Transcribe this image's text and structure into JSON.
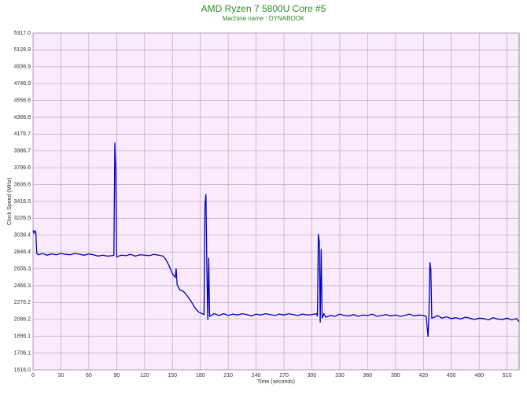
{
  "chart_data": {
    "type": "line",
    "title": "AMD Ryzen 7 5800U Core #5",
    "subtitle": "Machine name : DYNABOOK",
    "x_label": "Time (seconds)",
    "y_label": "Clock Speed (MHz)",
    "xlim": [
      0,
      523
    ],
    "xticks": [
      0,
      30,
      60,
      90,
      120,
      150,
      180,
      210,
      240,
      270,
      300,
      330,
      360,
      390,
      420,
      450,
      480,
      510
    ],
    "ylim": [
      1516,
      5317
    ],
    "yticks": [
      {
        "value": 1516,
        "label": "1516.0"
      },
      1706.1,
      1896.1,
      2086.2,
      2276.2,
      2466.3,
      2656.3,
      2846.4,
      3036.4,
      3226.5,
      3416.5,
      3606.6,
      3796.6,
      3986.7,
      4176.7,
      4366.8,
      4556.8,
      4746.9,
      4936.9,
      5126.9,
      {
        "value": 5317,
        "label": "5317.0"
      }
    ],
    "grid": true,
    "x": [
      0,
      1,
      2,
      3,
      4,
      6,
      10,
      15,
      20,
      25,
      30,
      35,
      40,
      45,
      50,
      55,
      60,
      65,
      70,
      75,
      80,
      85,
      87,
      88,
      89,
      90,
      92,
      95,
      100,
      105,
      110,
      115,
      120,
      125,
      130,
      135,
      140,
      143,
      146,
      150,
      153,
      154,
      155,
      158,
      162,
      166,
      170,
      174,
      178,
      182,
      184,
      185,
      186,
      187,
      188,
      189,
      190,
      195,
      200,
      205,
      210,
      215,
      220,
      225,
      230,
      235,
      240,
      245,
      250,
      255,
      260,
      265,
      270,
      275,
      280,
      285,
      290,
      295,
      300,
      305,
      306,
      307,
      308,
      309,
      310,
      311,
      313,
      315,
      320,
      325,
      330,
      335,
      340,
      345,
      350,
      355,
      360,
      365,
      370,
      375,
      380,
      385,
      390,
      395,
      400,
      405,
      410,
      415,
      420,
      423,
      425,
      426,
      427,
      428,
      429,
      432,
      435,
      440,
      445,
      450,
      455,
      460,
      465,
      470,
      475,
      480,
      485,
      490,
      495,
      500,
      505,
      510,
      515,
      520,
      523
    ],
    "series": [
      {
        "name": "Core #5",
        "color": "#0000c0",
        "values": [
          3090,
          3060,
          3085,
          3070,
          2830,
          2815,
          2830,
          2810,
          2825,
          2815,
          2830,
          2820,
          2815,
          2830,
          2820,
          2810,
          2825,
          2815,
          2800,
          2810,
          2800,
          2805,
          2810,
          4080,
          3780,
          2790,
          2800,
          2810,
          2805,
          2820,
          2800,
          2815,
          2810,
          2805,
          2820,
          2810,
          2800,
          2760,
          2700,
          2600,
          2560,
          2660,
          2480,
          2420,
          2400,
          2350,
          2290,
          2220,
          2170,
          2150,
          2140,
          3380,
          3500,
          2700,
          2080,
          2780,
          2120,
          2150,
          2130,
          2150,
          2130,
          2145,
          2135,
          2150,
          2140,
          2125,
          2145,
          2135,
          2150,
          2140,
          2130,
          2145,
          2135,
          2150,
          2140,
          2130,
          2145,
          2135,
          2140,
          2150,
          2120,
          3050,
          2960,
          2050,
          2880,
          2100,
          2150,
          2110,
          2130,
          2120,
          2145,
          2130,
          2125,
          2140,
          2120,
          2135,
          2130,
          2145,
          2120,
          2130,
          2140,
          2125,
          2135,
          2120,
          2130,
          2145,
          2125,
          2135,
          2130,
          2120,
          1890,
          2150,
          2730,
          2650,
          2100,
          2110,
          2130,
          2100,
          2115,
          2095,
          2105,
          2090,
          2110,
          2100,
          2085,
          2100,
          2095,
          2080,
          2105,
          2090,
          2085,
          2100,
          2080,
          2095,
          2060
        ]
      }
    ]
  }
}
